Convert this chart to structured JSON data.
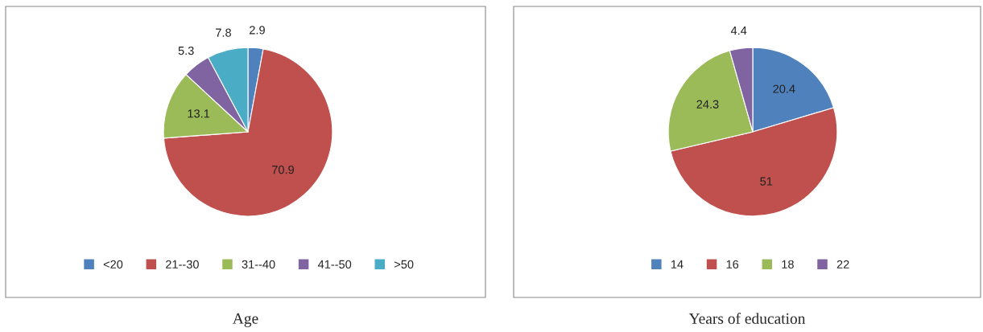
{
  "chart_data": [
    {
      "type": "pie",
      "title": "Age",
      "categories": [
        "<20",
        "21--30",
        "31--40",
        "41--50",
        ">50"
      ],
      "values": [
        2.9,
        70.9,
        13.1,
        5.3,
        7.8
      ],
      "colors": [
        "#4f81bd",
        "#c0504d",
        "#9bbb59",
        "#8064a2",
        "#4bacc6"
      ],
      "data_labels": true,
      "legend": "bottom"
    },
    {
      "type": "pie",
      "title": "Years of education",
      "categories": [
        "14",
        "16",
        "18",
        "22"
      ],
      "values": [
        20.4,
        51,
        24.3,
        4.4
      ],
      "colors": [
        "#4f81bd",
        "#c0504d",
        "#9bbb59",
        "#8064a2"
      ],
      "data_labels": true,
      "legend": "bottom"
    }
  ]
}
